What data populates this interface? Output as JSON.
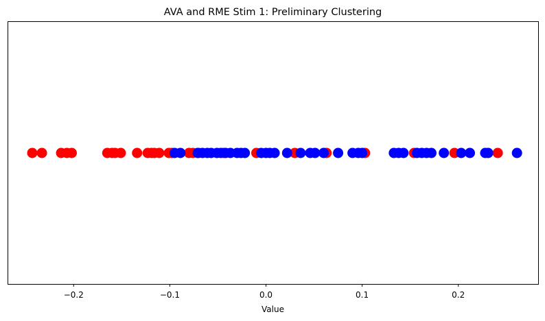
{
  "chart_data": {
    "type": "scatter",
    "title": "AVA and RME Stim 1: Preliminary Clustering",
    "xlabel": "Value",
    "ylabel": "",
    "xlim": [
      -0.268,
      0.283
    ],
    "ylim": [
      -1,
      1
    ],
    "xticks": [
      -0.2,
      -0.1,
      0.0,
      0.1,
      0.2
    ],
    "xtick_labels": [
      "−0.2",
      "−0.1",
      "0.0",
      "0.1",
      "0.2"
    ],
    "yticks": [],
    "grid": false,
    "legend": "none",
    "series": [
      {
        "color": "#ff0000",
        "x": [
          -0.243,
          -0.233,
          -0.213,
          -0.207,
          -0.202,
          -0.165,
          -0.16,
          -0.157,
          -0.151,
          -0.134,
          -0.123,
          -0.119,
          -0.116,
          -0.111,
          -0.101,
          -0.098,
          -0.08,
          -0.076,
          -0.07,
          -0.044,
          -0.01,
          0.03,
          0.063,
          0.103,
          0.154,
          0.196,
          0.241
        ],
        "y": [
          0,
          0,
          0,
          0,
          0,
          0,
          0,
          0,
          0,
          0,
          0,
          0,
          0,
          0,
          0,
          0,
          0,
          0,
          0,
          0,
          0,
          0,
          0,
          0,
          0,
          0,
          0
        ]
      },
      {
        "color": "#0000ff",
        "x": [
          -0.095,
          -0.089,
          -0.071,
          -0.066,
          -0.061,
          -0.057,
          -0.051,
          -0.047,
          -0.042,
          -0.037,
          -0.03,
          -0.026,
          -0.022,
          -0.005,
          0.0,
          0.004,
          0.009,
          0.022,
          0.036,
          0.046,
          0.051,
          0.06,
          0.075,
          0.09,
          0.096,
          0.1,
          0.133,
          0.138,
          0.143,
          0.157,
          0.162,
          0.167,
          0.172,
          0.185,
          0.203,
          0.212,
          0.228,
          0.231,
          0.261
        ],
        "y": [
          0,
          0,
          0,
          0,
          0,
          0,
          0,
          0,
          0,
          0,
          0,
          0,
          0,
          0,
          0,
          0,
          0,
          0,
          0,
          0,
          0,
          0,
          0,
          0,
          0,
          0,
          0,
          0,
          0,
          0,
          0,
          0,
          0,
          0,
          0,
          0,
          0,
          0,
          0
        ]
      }
    ]
  }
}
